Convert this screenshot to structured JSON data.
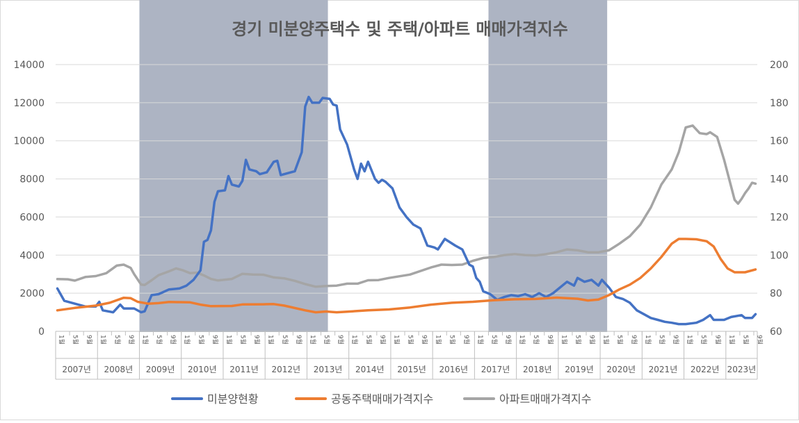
{
  "chart_data": {
    "type": "line",
    "title": "경기 미분양주택수 및 주택/아파트 매매가격지수",
    "colors": {
      "unsold": "#4472C4",
      "joint": "#ED7D31",
      "apt": "#A5A5A5",
      "shade": "#ADB4C3",
      "grid": "#D9D9D9",
      "text": "#595959"
    },
    "y_left": {
      "min": 0,
      "max": 14000,
      "ticks": [
        0,
        2000,
        4000,
        6000,
        8000,
        10000,
        12000,
        14000
      ]
    },
    "y_right": {
      "min": 60,
      "max": 200,
      "ticks": [
        60,
        80,
        100,
        120,
        140,
        160,
        180,
        200
      ]
    },
    "years": [
      "2007년",
      "2008년",
      "2009년",
      "2010년",
      "2011년",
      "2012년",
      "2013년",
      "2014년",
      "2015년",
      "2016년",
      "2017년",
      "2018년",
      "2019년",
      "2020년",
      "2021년",
      "2022년",
      "2023년"
    ],
    "month_ticks": [
      "1월",
      "5월",
      "9월"
    ],
    "month_numbers": [
      1,
      5,
      9
    ],
    "shaded_periods": [
      [
        "2009-01",
        "2013-06"
      ],
      [
        "2017-05",
        "2020-02"
      ]
    ],
    "x_start": "2007-01",
    "x_end": "2023-09",
    "series": [
      {
        "name": "미분양현황",
        "axis": "left",
        "points": [
          [
            "2007-01",
            2250
          ],
          [
            "2007-03",
            1600
          ],
          [
            "2007-06",
            1450
          ],
          [
            "2007-09",
            1300
          ],
          [
            "2007-12",
            1300
          ],
          [
            "2008-01",
            1550
          ],
          [
            "2008-02",
            1100
          ],
          [
            "2008-05",
            1000
          ],
          [
            "2008-07",
            1400
          ],
          [
            "2008-08",
            1200
          ],
          [
            "2008-11",
            1200
          ],
          [
            "2009-01",
            1000
          ],
          [
            "2009-02",
            1050
          ],
          [
            "2009-04",
            1900
          ],
          [
            "2009-06",
            1950
          ],
          [
            "2009-09",
            2200
          ],
          [
            "2009-12",
            2250
          ],
          [
            "2010-02",
            2400
          ],
          [
            "2010-04",
            2700
          ],
          [
            "2010-06",
            3200
          ],
          [
            "2010-07",
            4700
          ],
          [
            "2010-08",
            4800
          ],
          [
            "2010-09",
            5300
          ],
          [
            "2010-10",
            6800
          ],
          [
            "2010-11",
            7350
          ],
          [
            "2011-01",
            7400
          ],
          [
            "2011-02",
            8150
          ],
          [
            "2011-03",
            7700
          ],
          [
            "2011-05",
            7600
          ],
          [
            "2011-06",
            7900
          ],
          [
            "2011-07",
            9000
          ],
          [
            "2011-08",
            8500
          ],
          [
            "2011-10",
            8400
          ],
          [
            "2011-11",
            8250
          ],
          [
            "2012-01",
            8350
          ],
          [
            "2012-03",
            8900
          ],
          [
            "2012-04",
            8950
          ],
          [
            "2012-05",
            8200
          ],
          [
            "2012-07",
            8300
          ],
          [
            "2012-09",
            8400
          ],
          [
            "2012-11",
            9400
          ],
          [
            "2012-12",
            11800
          ],
          [
            "2013-01",
            12300
          ],
          [
            "2013-02",
            12000
          ],
          [
            "2013-04",
            12000
          ],
          [
            "2013-05",
            12250
          ],
          [
            "2013-07",
            12200
          ],
          [
            "2013-08",
            11900
          ],
          [
            "2013-09",
            11850
          ],
          [
            "2013-10",
            10600
          ],
          [
            "2013-12",
            9800
          ],
          [
            "2014-02",
            8500
          ],
          [
            "2014-03",
            8000
          ],
          [
            "2014-04",
            8800
          ],
          [
            "2014-05",
            8400
          ],
          [
            "2014-06",
            8900
          ],
          [
            "2014-08",
            8000
          ],
          [
            "2014-09",
            7800
          ],
          [
            "2014-10",
            7950
          ],
          [
            "2014-11",
            7850
          ],
          [
            "2015-01",
            7500
          ],
          [
            "2015-03",
            6500
          ],
          [
            "2015-05",
            6000
          ],
          [
            "2015-07",
            5600
          ],
          [
            "2015-09",
            5400
          ],
          [
            "2015-11",
            4500
          ],
          [
            "2016-01",
            4400
          ],
          [
            "2016-02",
            4300
          ],
          [
            "2016-04",
            4850
          ],
          [
            "2016-07",
            4500
          ],
          [
            "2016-09",
            4300
          ],
          [
            "2016-11",
            3500
          ],
          [
            "2016-12",
            3400
          ],
          [
            "2017-01",
            2800
          ],
          [
            "2017-02",
            2600
          ],
          [
            "2017-03",
            2100
          ],
          [
            "2017-05",
            1950
          ],
          [
            "2017-07",
            1650
          ],
          [
            "2017-09",
            1800
          ],
          [
            "2017-11",
            1900
          ],
          [
            "2018-01",
            1850
          ],
          [
            "2018-03",
            1950
          ],
          [
            "2018-05",
            1800
          ],
          [
            "2018-07",
            2000
          ],
          [
            "2018-09",
            1800
          ],
          [
            "2018-11",
            2000
          ],
          [
            "2019-01",
            2300
          ],
          [
            "2019-03",
            2600
          ],
          [
            "2019-05",
            2400
          ],
          [
            "2019-06",
            2800
          ],
          [
            "2019-08",
            2600
          ],
          [
            "2019-10",
            2700
          ],
          [
            "2019-12",
            2400
          ],
          [
            "2020-01",
            2700
          ],
          [
            "2020-03",
            2300
          ],
          [
            "2020-05",
            1800
          ],
          [
            "2020-07",
            1700
          ],
          [
            "2020-09",
            1500
          ],
          [
            "2020-11",
            1100
          ],
          [
            "2021-01",
            900
          ],
          [
            "2021-03",
            700
          ],
          [
            "2021-05",
            600
          ],
          [
            "2021-07",
            500
          ],
          [
            "2021-09",
            450
          ],
          [
            "2021-11",
            380
          ],
          [
            "2022-01",
            380
          ],
          [
            "2022-04",
            450
          ],
          [
            "2022-06",
            600
          ],
          [
            "2022-08",
            850
          ],
          [
            "2022-09",
            600
          ],
          [
            "2022-12",
            600
          ],
          [
            "2023-02",
            750
          ],
          [
            "2023-05",
            850
          ],
          [
            "2023-06",
            700
          ],
          [
            "2023-08",
            700
          ],
          [
            "2023-09",
            900
          ]
        ]
      },
      {
        "name": "공동주택매매가격지수",
        "axis": "right",
        "points": [
          [
            "2007-01",
            71
          ],
          [
            "2007-06",
            72.3
          ],
          [
            "2007-12",
            73.5
          ],
          [
            "2008-04",
            75
          ],
          [
            "2008-08",
            77.6
          ],
          [
            "2008-10",
            77.4
          ],
          [
            "2008-12",
            75.5
          ],
          [
            "2009-03",
            74.5
          ],
          [
            "2009-06",
            74.8
          ],
          [
            "2009-09",
            75.4
          ],
          [
            "2009-12",
            75.3
          ],
          [
            "2010-03",
            75.2
          ],
          [
            "2010-06",
            74
          ],
          [
            "2010-09",
            73.2
          ],
          [
            "2011-03",
            73.3
          ],
          [
            "2011-06",
            74.1
          ],
          [
            "2011-12",
            74.2
          ],
          [
            "2012-03",
            74.3
          ],
          [
            "2012-06",
            73.5
          ],
          [
            "2012-12",
            71
          ],
          [
            "2013-03",
            70
          ],
          [
            "2013-06",
            70.4
          ],
          [
            "2013-09",
            70
          ],
          [
            "2013-12",
            70.3
          ],
          [
            "2014-06",
            71
          ],
          [
            "2014-12",
            71.5
          ],
          [
            "2015-06",
            72.5
          ],
          [
            "2015-12",
            74
          ],
          [
            "2016-06",
            75
          ],
          [
            "2016-12",
            75.5
          ],
          [
            "2017-06",
            76.3
          ],
          [
            "2017-12",
            76.8
          ],
          [
            "2018-06",
            77
          ],
          [
            "2018-12",
            77.7
          ],
          [
            "2019-06",
            77.1
          ],
          [
            "2019-09",
            76.2
          ],
          [
            "2019-12",
            76.7
          ],
          [
            "2020-03",
            79
          ],
          [
            "2020-06",
            82
          ],
          [
            "2020-09",
            84.5
          ],
          [
            "2020-12",
            88
          ],
          [
            "2021-03",
            93
          ],
          [
            "2021-06",
            99
          ],
          [
            "2021-09",
            106
          ],
          [
            "2021-11",
            108.5
          ],
          [
            "2022-01",
            108.5
          ],
          [
            "2022-04",
            108.3
          ],
          [
            "2022-07",
            107.3
          ],
          [
            "2022-09",
            104.5
          ],
          [
            "2022-11",
            98
          ],
          [
            "2023-01",
            93
          ],
          [
            "2023-03",
            91
          ],
          [
            "2023-06",
            91
          ],
          [
            "2023-09",
            92.5
          ]
        ]
      },
      {
        "name": "아파트매매가격지수",
        "axis": "right",
        "points": [
          [
            "2007-01",
            87.4
          ],
          [
            "2007-04",
            87.3
          ],
          [
            "2007-06",
            86.6
          ],
          [
            "2007-09",
            88.5
          ],
          [
            "2007-12",
            89
          ],
          [
            "2008-03",
            90.5
          ],
          [
            "2008-06",
            94.5
          ],
          [
            "2008-08",
            95
          ],
          [
            "2008-10",
            93.3
          ],
          [
            "2008-11",
            90
          ],
          [
            "2009-01",
            84.5
          ],
          [
            "2009-02",
            84.3
          ],
          [
            "2009-04",
            86.8
          ],
          [
            "2009-06",
            89.5
          ],
          [
            "2009-09",
            91.5
          ],
          [
            "2009-11",
            93
          ],
          [
            "2010-01",
            92
          ],
          [
            "2010-03",
            90.5
          ],
          [
            "2010-05",
            90.8
          ],
          [
            "2010-07",
            89.3
          ],
          [
            "2010-09",
            87.5
          ],
          [
            "2010-11",
            86.7
          ],
          [
            "2011-03",
            87.5
          ],
          [
            "2011-06",
            90.2
          ],
          [
            "2011-09",
            89.8
          ],
          [
            "2011-12",
            89.7
          ],
          [
            "2012-03",
            88.3
          ],
          [
            "2012-06",
            87.8
          ],
          [
            "2012-09",
            86.5
          ],
          [
            "2012-12",
            84.8
          ],
          [
            "2013-03",
            83.4
          ],
          [
            "2013-06",
            83.8
          ],
          [
            "2013-09",
            84
          ],
          [
            "2013-12",
            85
          ],
          [
            "2014-03",
            85
          ],
          [
            "2014-06",
            86.8
          ],
          [
            "2014-09",
            86.9
          ],
          [
            "2014-12",
            88
          ],
          [
            "2015-06",
            89.8
          ],
          [
            "2015-12",
            93.5
          ],
          [
            "2016-03",
            95
          ],
          [
            "2016-06",
            94.8
          ],
          [
            "2016-09",
            95
          ],
          [
            "2016-12",
            97
          ],
          [
            "2017-03",
            98.5
          ],
          [
            "2017-06",
            99
          ],
          [
            "2017-09",
            100
          ],
          [
            "2017-12",
            100.5
          ],
          [
            "2018-03",
            100
          ],
          [
            "2018-06",
            99.8
          ],
          [
            "2018-09",
            100.5
          ],
          [
            "2018-12",
            101.5
          ],
          [
            "2019-03",
            103
          ],
          [
            "2019-06",
            102.5
          ],
          [
            "2019-09",
            101.5
          ],
          [
            "2019-12",
            101.5
          ],
          [
            "2020-03",
            102.5
          ],
          [
            "2020-06",
            106
          ],
          [
            "2020-09",
            110
          ],
          [
            "2020-12",
            116
          ],
          [
            "2021-03",
            125
          ],
          [
            "2021-06",
            137
          ],
          [
            "2021-09",
            145
          ],
          [
            "2021-11",
            154
          ],
          [
            "2022-01",
            167
          ],
          [
            "2022-03",
            168
          ],
          [
            "2022-05",
            164
          ],
          [
            "2022-07",
            163.5
          ],
          [
            "2022-08",
            164.5
          ],
          [
            "2022-10",
            162
          ],
          [
            "2022-12",
            150
          ],
          [
            "2023-02",
            136
          ],
          [
            "2023-03",
            129
          ],
          [
            "2023-04",
            127
          ],
          [
            "2023-05",
            129.5
          ],
          [
            "2023-06",
            132.5
          ],
          [
            "2023-07",
            135
          ],
          [
            "2023-08",
            138
          ],
          [
            "2023-09",
            137.5
          ]
        ]
      }
    ],
    "legend_position": "bottom"
  }
}
